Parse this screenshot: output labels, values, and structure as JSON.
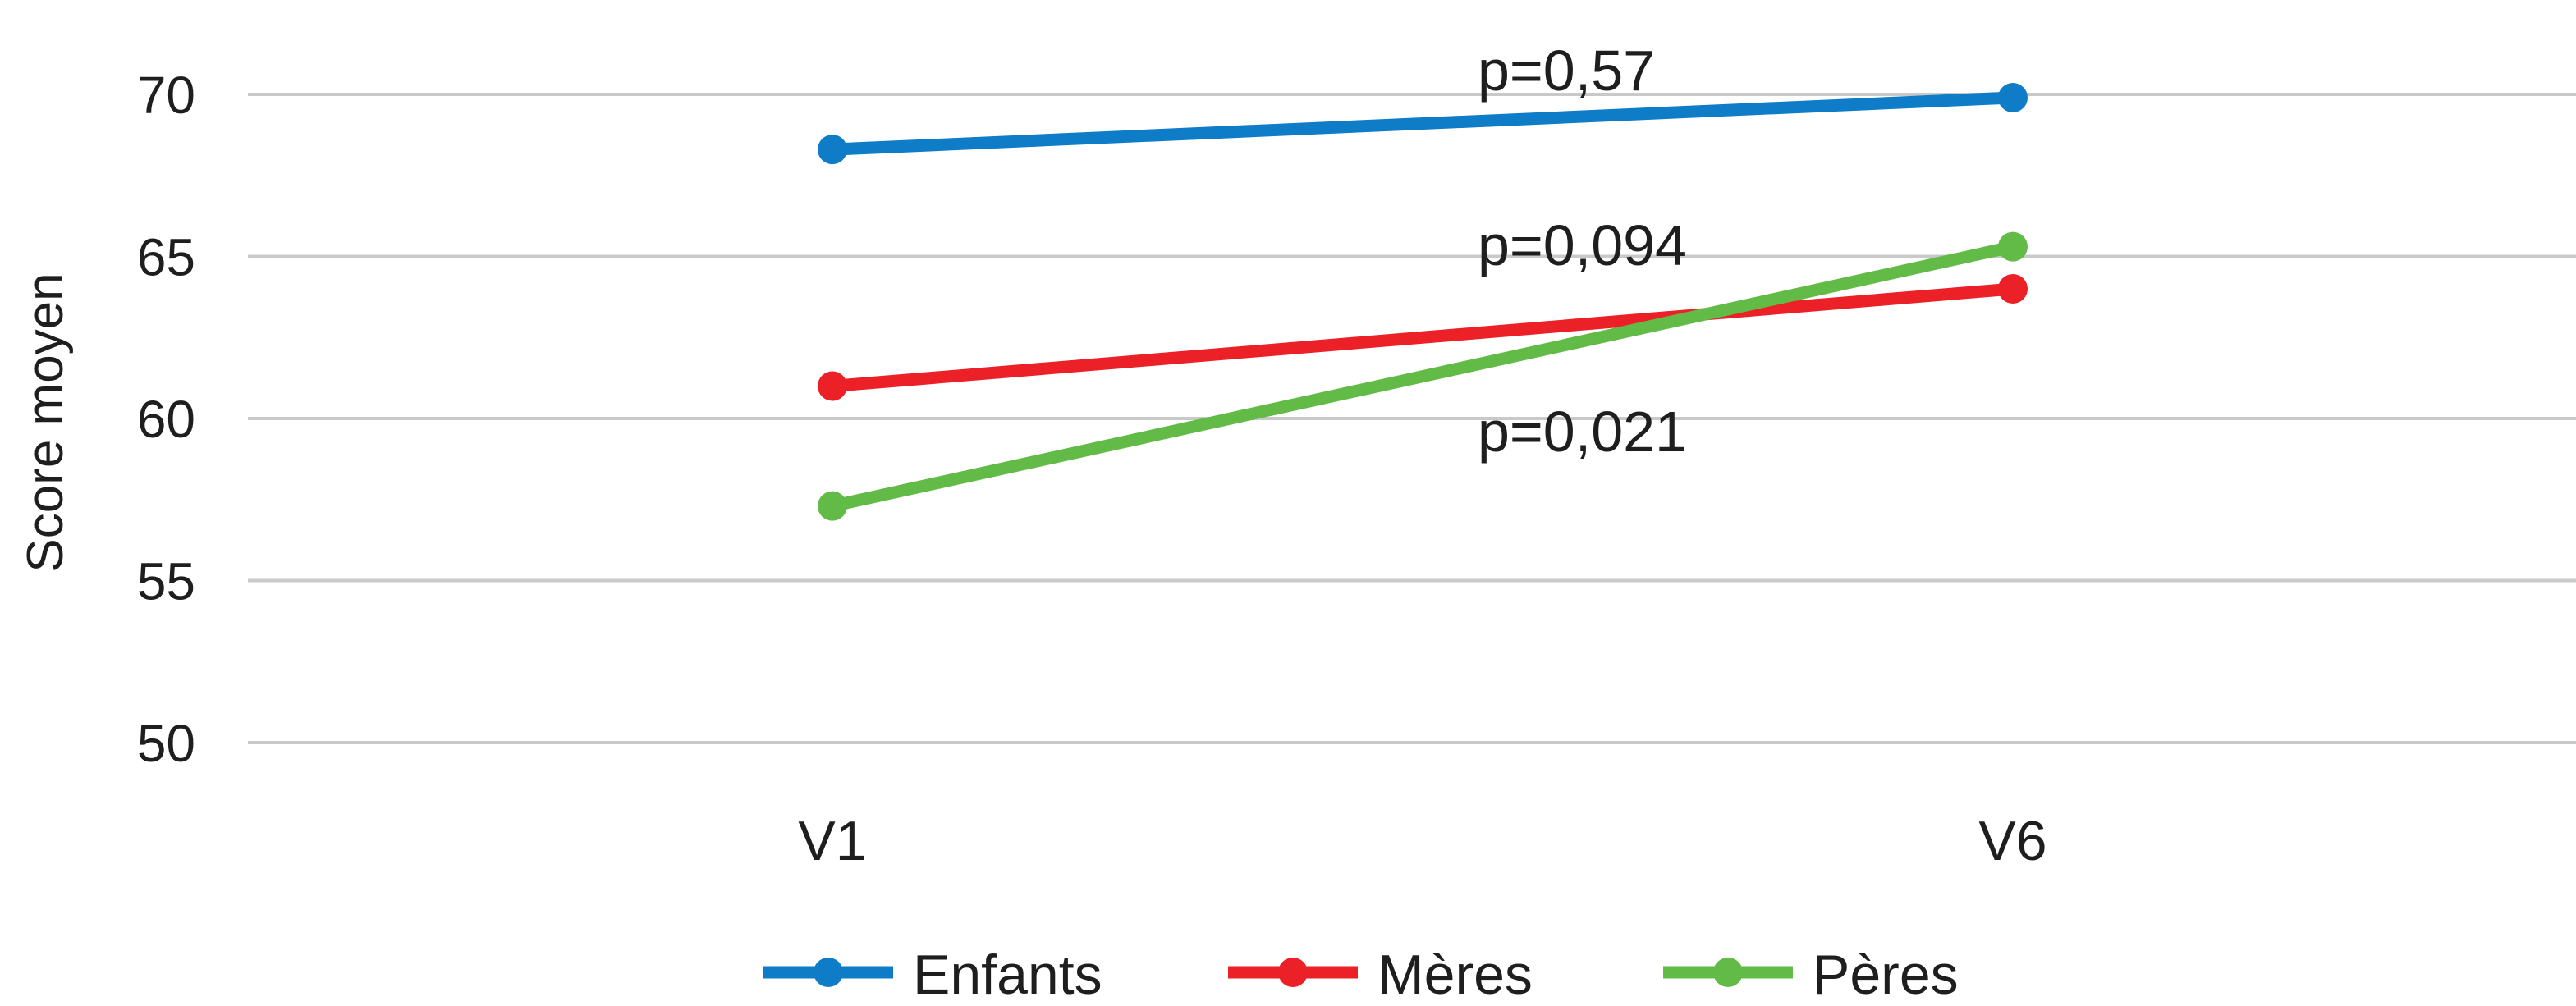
{
  "chart_data": {
    "type": "line",
    "categories": [
      "V1",
      "V6"
    ],
    "ylabel": "Score moyen",
    "xlabel": "",
    "ylim": [
      50,
      70
    ],
    "yticks": [
      50,
      55,
      60,
      65,
      70
    ],
    "grid": true,
    "legend_position": "bottom",
    "series": [
      {
        "name": "Enfants",
        "values": [
          68.3,
          69.9
        ],
        "color": "#0F7CC8"
      },
      {
        "name": "Mères",
        "values": [
          61.0,
          64.0
        ],
        "color": "#EC2027"
      },
      {
        "name": "Pères",
        "values": [
          57.3,
          65.3
        ],
        "color": "#62BB46"
      }
    ],
    "annotations": [
      {
        "text": "p=0,57",
        "series": "Enfants"
      },
      {
        "text": "p=0,094",
        "series": "Mères"
      },
      {
        "text": "p=0,021",
        "series": "Pères"
      }
    ]
  }
}
